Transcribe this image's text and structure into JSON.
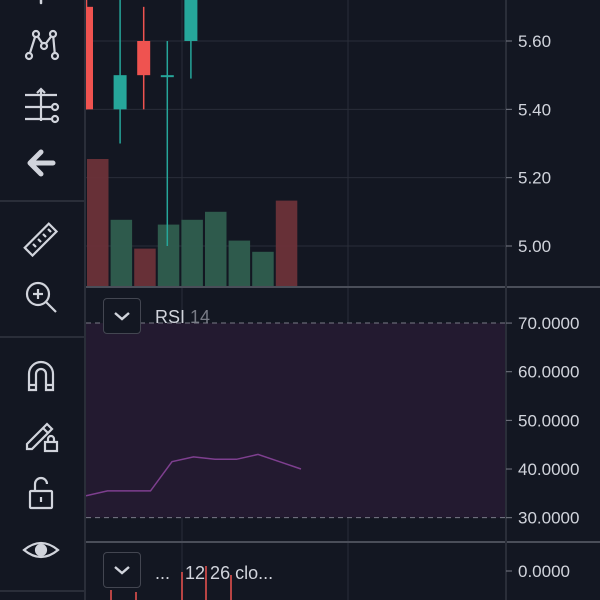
{
  "toolbar": {
    "items": [
      {
        "name": "text-tool-icon"
      },
      {
        "name": "pattern-tool-icon"
      },
      {
        "name": "measure-tool-icon"
      },
      {
        "name": "back-arrow-icon"
      },
      {
        "name": "ruler-icon"
      },
      {
        "name": "zoom-in-icon"
      },
      {
        "name": "magnet-icon"
      },
      {
        "name": "lock-drawings-icon"
      },
      {
        "name": "unlock-icon"
      },
      {
        "name": "eye-icon"
      }
    ]
  },
  "colors": {
    "background": "#131722",
    "grid": "#2a2e39",
    "up": "#26a69a",
    "down": "#ef5350",
    "volume_up": "#2f5e4f",
    "volume_down": "#6b3239",
    "rsi_band": "#231a30",
    "rsi_line": "#7e3f8f"
  },
  "price_pane": {
    "axis": {
      "ticks": [
        "5.60",
        "5.40",
        "5.20",
        "5.00"
      ]
    },
    "chart_data": {
      "type": "candlestick",
      "ylim": [
        4.88,
        5.72
      ],
      "candles": [
        {
          "open": 5.7,
          "close": 5.4,
          "high": 5.75,
          "low": 5.4
        },
        {
          "open": 5.4,
          "close": 5.5,
          "high": 5.75,
          "low": 5.3
        },
        {
          "open": 5.6,
          "close": 5.5,
          "high": 5.7,
          "low": 5.4
        },
        {
          "open": 5.5,
          "close": 5.5,
          "high": 5.6,
          "low": 5.0
        },
        {
          "open": 5.6,
          "close": 5.75,
          "high": 5.75,
          "low": 5.49
        }
      ],
      "volume": [
        {
          "value": 0.8,
          "dir": "down"
        },
        {
          "value": 0.42,
          "dir": "up"
        },
        {
          "value": 0.24,
          "dir": "down"
        },
        {
          "value": 0.39,
          "dir": "up"
        },
        {
          "value": 0.42,
          "dir": "up"
        },
        {
          "value": 0.47,
          "dir": "up"
        },
        {
          "value": 0.29,
          "dir": "up"
        },
        {
          "value": 0.22,
          "dir": "up"
        },
        {
          "value": 0.54,
          "dir": "down"
        }
      ]
    }
  },
  "rsi_pane": {
    "legend": {
      "name": "RSI",
      "param": "14"
    },
    "axis": {
      "ticks": [
        "70.0000",
        "60.0000",
        "50.0000",
        "40.0000",
        "30.0000"
      ]
    },
    "chart_data": {
      "type": "line",
      "ylim": [
        25,
        77
      ],
      "bands": [
        30,
        70
      ],
      "values": [
        34.5,
        35.5,
        35.5,
        35.5,
        41.5,
        42.5,
        42.0,
        42.0,
        43.0,
        41.5,
        40.0
      ]
    }
  },
  "macd_pane": {
    "legend": {
      "dots": "...",
      "params": "12 26 clo..."
    },
    "axis": {
      "ticks": [
        "0.0000"
      ]
    }
  }
}
